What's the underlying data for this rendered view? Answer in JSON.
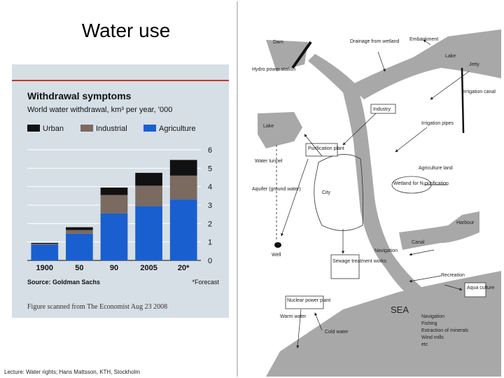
{
  "slide": {
    "title": "Water use",
    "footer": "Lecture: Water rights; Hans Mattsson, KTH, Stockholm",
    "caption": "Figure scanned from The Economist Aug 23 2008"
  },
  "colors": {
    "urban": "#111111",
    "industrial": "#7a6a60",
    "agriculture": "#1a5fd0",
    "panel_bg": "#d6dfe6",
    "sea": "#a8a8a8"
  },
  "chart_data": {
    "type": "bar",
    "stacked": true,
    "title": "Withdrawal symptoms",
    "subtitle": "World water withdrawal, km³ per year, '000",
    "categories": [
      "1900",
      "50",
      "90",
      "2005",
      "20*"
    ],
    "series": [
      {
        "name": "Agriculture",
        "values": [
          0.85,
          1.45,
          2.55,
          2.95,
          3.3
        ]
      },
      {
        "name": "Industrial",
        "values": [
          0.05,
          0.2,
          1.0,
          1.1,
          1.3
        ]
      },
      {
        "name": "Urban",
        "values": [
          0.05,
          0.15,
          0.4,
          0.7,
          0.85
        ]
      }
    ],
    "ylim": [
      0,
      6
    ],
    "yticks": [
      "0",
      "1",
      "2",
      "3",
      "4",
      "5",
      "6"
    ],
    "grid": true,
    "legend": "top",
    "source": "Source: Goldman Sachs",
    "footnote": "*Forecast"
  },
  "diagram": {
    "labels": {
      "dam": "Dam",
      "drainage": "Drainage from wetland",
      "embankment": "Embankment",
      "lake_top": "Lake",
      "jetty": "Jetty",
      "hydro": "Hydro power station",
      "irrigation_canal": "Irrigation canal",
      "industry": "Industry",
      "irrigation_pipes": "Irrigation pipes",
      "lake_left": "Lake",
      "purification": "Purification plant",
      "water_tunnel": "Water tunnel",
      "agriculture_land": "Agriculture land",
      "wetland": "Wetland for N-purification",
      "aquifer": "Aquifer (ground water)",
      "city": "City",
      "harbour": "Harbour",
      "canal": "Canal",
      "well": "Well",
      "navigation_mid": "Navigation",
      "sewage": "Sewage treatment works",
      "recreation": "Recreation",
      "aqua": "Aqua culture",
      "nuclear": "Nuclear power plant",
      "sea": "SEA",
      "warm_water": "Warm water",
      "cold_water": "Cold water",
      "sea_uses": [
        "Navigation",
        "Fishing",
        "Extraction of minerals",
        "Wind mills",
        "etc"
      ]
    }
  }
}
